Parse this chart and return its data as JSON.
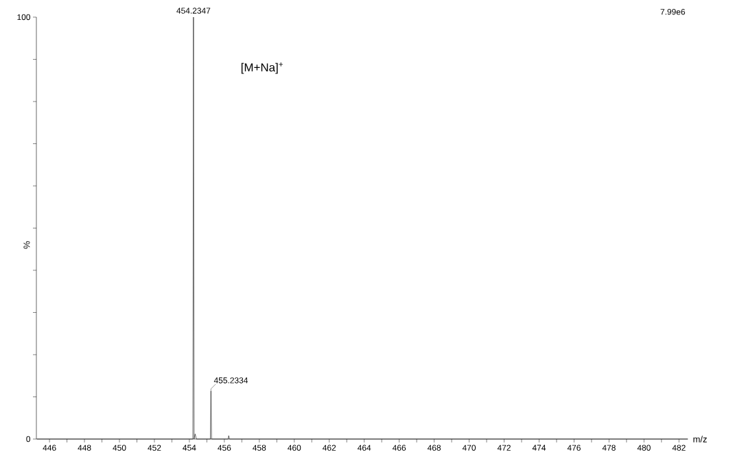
{
  "chart_data": {
    "type": "line",
    "xlabel": "m/z",
    "ylabel": "%",
    "series": [
      {
        "color": "#000000",
        "x": [
          445.3,
          454.2,
          454.2347,
          454.27,
          454.33,
          454.4,
          455.2,
          455.2334,
          455.27,
          456.22,
          456.25,
          456.29,
          482.5
        ],
        "values": [
          0,
          0,
          100,
          0,
          1.2,
          0,
          0,
          11.4,
          0,
          0,
          0.8,
          0,
          0
        ]
      }
    ],
    "xlim": [
      445.25,
      482.5
    ],
    "ylim": [
      0,
      100
    ],
    "xticks": [
      446,
      {
        "value": 447,
        "label": null
      },
      448,
      {
        "value": 449,
        "label": null
      },
      450,
      {
        "value": 451,
        "label": null
      },
      452,
      {
        "value": 453,
        "label": null
      },
      454,
      {
        "value": 455,
        "label": null
      },
      456,
      {
        "value": 457,
        "label": null
      },
      458,
      {
        "value": 459,
        "label": null
      },
      460,
      {
        "value": 461,
        "label": null
      },
      462,
      {
        "value": 463,
        "label": null
      },
      464,
      {
        "value": 465,
        "label": null
      },
      466,
      {
        "value": 467,
        "label": null
      },
      468,
      {
        "value": 469,
        "label": null
      },
      470,
      {
        "value": 471,
        "label": null
      },
      472,
      {
        "value": 473,
        "label": null
      },
      474,
      {
        "value": 475,
        "label": null
      },
      476,
      {
        "value": 477,
        "label": null
      },
      478,
      {
        "value": 479,
        "label": null
      },
      480,
      {
        "value": 481,
        "label": null
      },
      482
    ],
    "yticks": [
      0,
      {
        "value": 10,
        "label": null
      },
      {
        "value": 20,
        "label": null
      },
      {
        "value": 30,
        "label": null
      },
      {
        "value": 40,
        "label": null
      },
      {
        "value": 50,
        "label": null
      },
      {
        "value": 60,
        "label": null
      },
      {
        "value": 70,
        "label": null
      },
      {
        "value": 80,
        "label": null
      },
      {
        "value": 90,
        "label": null
      },
      100
    ],
    "grid": false,
    "marker": "none",
    "line_style": "solid",
    "annotations": [
      {
        "text": "454.2347",
        "x": 454.2347,
        "y": 100
      },
      {
        "text": "455.2334",
        "x": 455.2334,
        "y": 11.4
      },
      "[M+Na]$^{+}$",
      "7.99e6"
    ]
  }
}
